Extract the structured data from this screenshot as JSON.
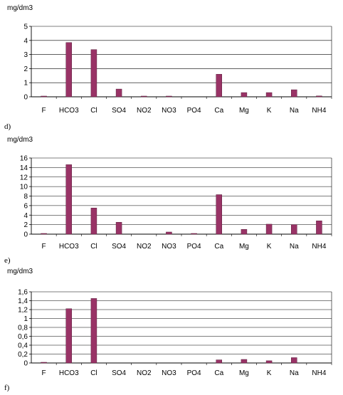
{
  "chart_data": [
    {
      "type": "bar",
      "ylabel": "mg/dm3",
      "ylim": [
        0,
        5
      ],
      "yticks": [
        "0",
        "1",
        "2",
        "3",
        "4",
        "5"
      ],
      "categories": [
        "F",
        "HCO3",
        "Cl",
        "SO4",
        "NO2",
        "NO3",
        "PO4",
        "Ca",
        "Mg",
        "K",
        "Na",
        "NH4"
      ],
      "values": [
        0.05,
        3.85,
        3.35,
        0.55,
        0.04,
        0.04,
        0.0,
        1.6,
        0.3,
        0.3,
        0.5,
        0.06
      ],
      "grid": true,
      "bar_color": "#993366",
      "panel_label": "d)"
    },
    {
      "type": "bar",
      "ylabel": "mg/dm3",
      "ylim": [
        0,
        16
      ],
      "yticks": [
        "0",
        "2",
        "4",
        "6",
        "8",
        "10",
        "12",
        "14",
        "16"
      ],
      "categories": [
        "F",
        "HCO3",
        "Cl",
        "SO4",
        "NO2",
        "NO3",
        "PO4",
        "Ca",
        "Mg",
        "K",
        "Na",
        "NH4"
      ],
      "values": [
        0.15,
        14.6,
        5.5,
        2.5,
        0.0,
        0.45,
        0.15,
        8.3,
        1.0,
        2.1,
        2.0,
        2.8
      ],
      "grid": true,
      "bar_color": "#993366",
      "panel_label": "e)"
    },
    {
      "type": "bar",
      "ylabel": "mg/dm3",
      "ylim": [
        0,
        1.6
      ],
      "yticks": [
        "0",
        "0,2",
        "0,4",
        "0,6",
        "0,8",
        "1",
        "1,2",
        "1,4",
        "1,6"
      ],
      "categories": [
        "F",
        "HCO3",
        "Cl",
        "SO4",
        "NO2",
        "NO3",
        "PO4",
        "Ca",
        "Mg",
        "K",
        "Na",
        "NH4"
      ],
      "values": [
        0.01,
        1.22,
        1.45,
        0.0,
        0.0,
        0.0,
        0.0,
        0.07,
        0.08,
        0.05,
        0.12,
        0.0
      ],
      "grid": true,
      "bar_color": "#993366",
      "panel_label": "f)"
    }
  ]
}
